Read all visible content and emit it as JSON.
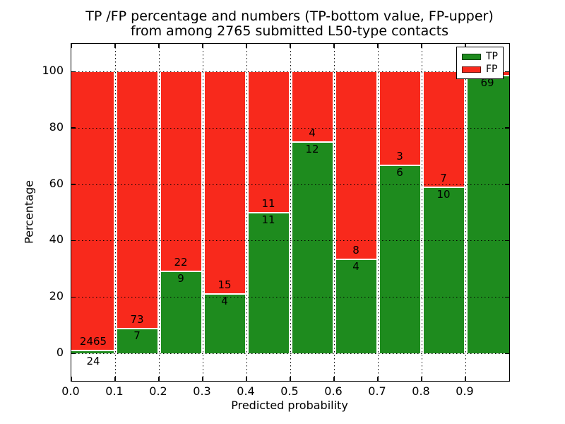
{
  "figure": {
    "title_line1": "TP /FP percentage and numbers (TP-bottom value, FP-upper)",
    "title_line2": "from among 2765 submitted L50-type contacts",
    "background_color": "#ffffff"
  },
  "colors": {
    "tp_green": "#1e8b1e",
    "fp_red": "#f8291c",
    "grid": "#000000",
    "spine": "#000000",
    "segment_divider": "#ffffff"
  },
  "chart_data": {
    "type": "bar",
    "subtype": "stacked-percentage-histogram",
    "title": "TP /FP percentage and numbers (TP-bottom value, FP-upper)\nfrom among 2765 submitted L50-type contacts",
    "xlabel": "Predicted probability",
    "ylabel": "Percentage",
    "xlim": [
      0.0,
      1.0
    ],
    "ylim": [
      -10,
      110
    ],
    "x_tick_labels": [
      "0.0",
      "0.1",
      "0.2",
      "0.3",
      "0.4",
      "0.5",
      "0.6",
      "0.7",
      "0.8",
      "0.9"
    ],
    "y_ticks": [
      0,
      20,
      40,
      60,
      80,
      100
    ],
    "grid": true,
    "grid_style": "dotted, drawn above bars",
    "legend_position": "upper-right",
    "total_contacts": 2765,
    "categories": [
      "0.0-0.1",
      "0.1-0.2",
      "0.2-0.3",
      "0.3-0.4",
      "0.4-0.5",
      "0.5-0.6",
      "0.6-0.7",
      "0.7-0.8",
      "0.8-0.9",
      "0.9-1.0"
    ],
    "series": [
      {
        "name": "TP",
        "color": "#1e8b1e",
        "counts": [
          24,
          7,
          9,
          4,
          11,
          12,
          4,
          6,
          10,
          69
        ],
        "pct_of_bin": [
          0.96,
          8.75,
          29.03,
          21.05,
          50.0,
          75.0,
          33.33,
          66.67,
          58.82,
          98.57
        ]
      },
      {
        "name": "FP",
        "color": "#f8291c",
        "counts": [
          2465,
          73,
          22,
          15,
          11,
          4,
          8,
          3,
          7,
          null
        ],
        "pct_of_bin": [
          99.04,
          91.25,
          70.97,
          78.95,
          50.0,
          25.0,
          66.67,
          33.33,
          41.18,
          1.43
        ]
      }
    ],
    "value_label_note": "FP count label of last bin is hidden behind the legend in the rendered image"
  }
}
